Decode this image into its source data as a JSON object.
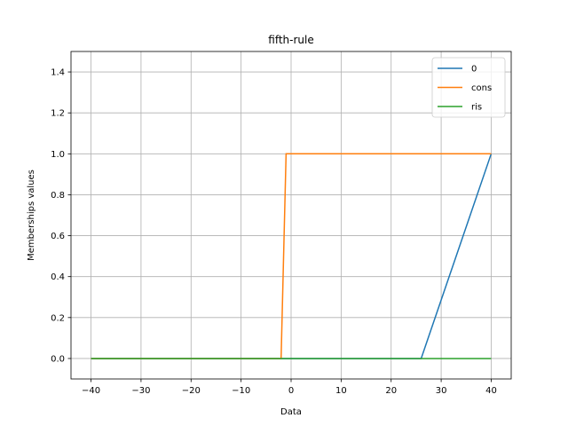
{
  "chart_data": {
    "type": "line",
    "title": "fifth-rule",
    "xlabel": "Data",
    "ylabel": "Memberships values",
    "xlim": [
      -44,
      44
    ],
    "ylim": [
      -0.1,
      1.5
    ],
    "xticks": [
      -40,
      -30,
      -20,
      -10,
      0,
      10,
      20,
      30,
      40
    ],
    "yticks": [
      0.0,
      0.2,
      0.4,
      0.6,
      0.8,
      1.0,
      1.2,
      1.4
    ],
    "xtick_labels": [
      "−40",
      "−30",
      "−20",
      "−10",
      "0",
      "10",
      "20",
      "30",
      "40"
    ],
    "ytick_labels": [
      "0.0",
      "0.2",
      "0.4",
      "0.6",
      "0.8",
      "1.0",
      "1.2",
      "1.4"
    ],
    "grid": true,
    "legend_position": "top-right",
    "series": [
      {
        "name": "0",
        "color": "#1f77b4",
        "x": [
          -40,
          26,
          40
        ],
        "y": [
          0,
          0,
          1
        ]
      },
      {
        "name": "cons",
        "color": "#ff7f0e",
        "x": [
          -40,
          -2,
          -1,
          40
        ],
        "y": [
          0,
          0,
          1,
          1
        ]
      },
      {
        "name": "ris",
        "color": "#2ca02c",
        "x": [
          -40,
          40
        ],
        "y": [
          0,
          0
        ]
      }
    ]
  }
}
